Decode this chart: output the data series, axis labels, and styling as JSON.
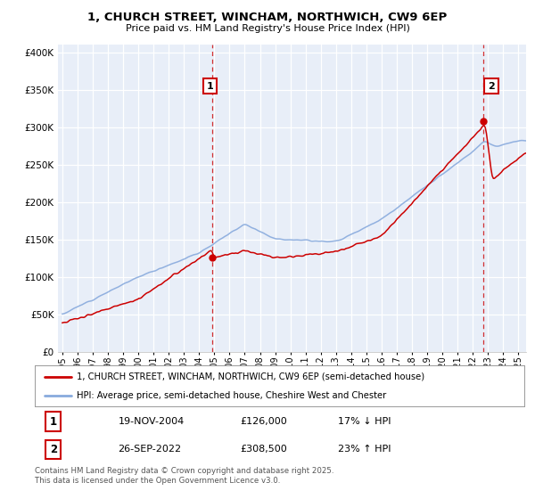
{
  "title1": "1, CHURCH STREET, WINCHAM, NORTHWICH, CW9 6EP",
  "title2": "Price paid vs. HM Land Registry's House Price Index (HPI)",
  "legend_line1": "1, CHURCH STREET, WINCHAM, NORTHWICH, CW9 6EP (semi-detached house)",
  "legend_line2": "HPI: Average price, semi-detached house, Cheshire West and Chester",
  "sale1_label": "1",
  "sale1_date": "19-NOV-2004",
  "sale1_price": "£126,000",
  "sale1_hpi": "17% ↓ HPI",
  "sale2_label": "2",
  "sale2_date": "26-SEP-2022",
  "sale2_price": "£308,500",
  "sale2_hpi": "23% ↑ HPI",
  "footnote": "Contains HM Land Registry data © Crown copyright and database right 2025.\nThis data is licensed under the Open Government Licence v3.0.",
  "house_color": "#cc0000",
  "hpi_color": "#88aadd",
  "background_color": "#e8eef8",
  "grid_color": "#ffffff",
  "ylim_min": 0,
  "ylim_max": 400000,
  "x_start_year": 1995,
  "x_end_year": 2025
}
